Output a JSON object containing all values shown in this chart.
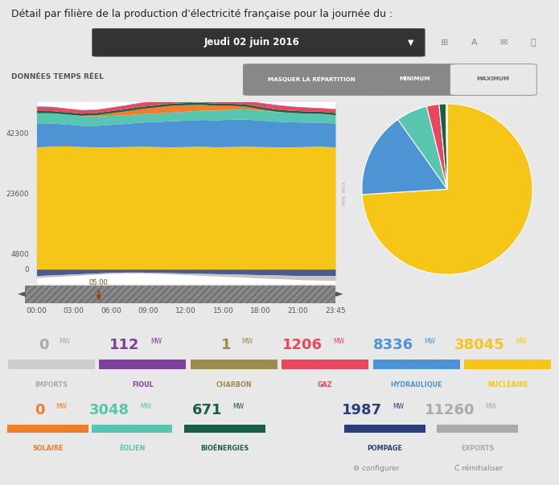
{
  "title": "Détail par filière de la production d'électricité française pour la journée du :",
  "date_label": "Jeudi 02 juin 2016",
  "donnees_label": "DONNÉES TEMPS RÉEL",
  "buttons": [
    "MASQUER LA RÉPARTITION",
    "MINIMUM",
    "MAXIMUM"
  ],
  "bg_color": "#e8e8e8",
  "chart_bg": "#ffffff",
  "yticks": [
    0,
    4800,
    23600,
    42300
  ],
  "xticks": [
    "00:00",
    "03:00",
    "06:00",
    "09:00",
    "12:00",
    "15:00",
    "18:00",
    "21:00",
    "23:45"
  ],
  "time_marker": "05:00",
  "nucleaire_v": [
    38000,
    38200,
    38300,
    38100,
    38000,
    38000,
    38100,
    38200,
    38100,
    38000,
    38100,
    38200,
    38000,
    38100,
    38200,
    38100,
    38000,
    38000,
    38100,
    38200,
    38000
  ],
  "hydraulique_v": [
    7500,
    7200,
    6800,
    6600,
    6700,
    7000,
    7200,
    7500,
    7800,
    8100,
    8200,
    8300,
    8400,
    8500,
    8400,
    8200,
    8000,
    7800,
    7600,
    7500,
    7400
  ],
  "eolien_v": [
    3100,
    3200,
    3100,
    3000,
    2900,
    2800,
    2700,
    2600,
    2600,
    2700,
    2800,
    2900,
    3000,
    3100,
    3200,
    3100,
    3000,
    2900,
    2800,
    2700,
    2600
  ],
  "solaire_v": [
    0,
    0,
    0,
    100,
    400,
    800,
    1200,
    1600,
    1900,
    2100,
    2000,
    1800,
    1500,
    1200,
    800,
    400,
    100,
    0,
    0,
    0,
    0
  ],
  "bioenergies_v": [
    670,
    670,
    670,
    670,
    670,
    670,
    670,
    670,
    670,
    670,
    670,
    670,
    670,
    670,
    670,
    670,
    670,
    670,
    670,
    670,
    670
  ],
  "gaz_v": [
    1300,
    1200,
    1100,
    1000,
    900,
    1000,
    1100,
    1200,
    1300,
    1200,
    1100,
    1000,
    900,
    1000,
    1100,
    1200,
    1300,
    1200,
    1100,
    1000,
    1100
  ],
  "charbon_v": [
    1,
    1,
    1,
    1,
    1,
    1,
    1,
    1,
    1,
    1,
    1,
    1,
    1,
    1,
    1,
    1,
    1,
    1,
    1,
    1,
    1
  ],
  "fioul_v": [
    112,
    112,
    112,
    112,
    112,
    112,
    112,
    112,
    112,
    112,
    112,
    112,
    112,
    112,
    112,
    112,
    112,
    112,
    112,
    112,
    112
  ],
  "pompage_v": [
    -1987,
    -1800,
    -1600,
    -1400,
    -1200,
    -1000,
    -900,
    -900,
    -1000,
    -1100,
    -1200,
    -1300,
    -1400,
    -1500,
    -1600,
    -1700,
    -1800,
    -1900,
    -2000,
    -2000,
    -2000
  ],
  "imports_v": [
    -600,
    -550,
    -500,
    -450,
    -400,
    -350,
    -300,
    -300,
    -350,
    -400,
    -500,
    -600,
    -700,
    -800,
    -900,
    -1000,
    -1100,
    -1200,
    -1300,
    -1400,
    -1500
  ],
  "pie_values": [
    38045,
    8336,
    3048,
    1206,
    671,
    112
  ],
  "pie_colors": [
    "#f5c518",
    "#4d94d5",
    "#57c5b0",
    "#e8475f",
    "#1a5e45",
    "#9b8b4e"
  ],
  "stats_row1": [
    {
      "value": "0",
      "label": "IMPORTS",
      "text_color": "#aaaaaa",
      "bar_color": "#cccccc"
    },
    {
      "value": "112",
      "label": "FIOUL",
      "text_color": "#7e3f9d",
      "bar_color": "#7e3f9d"
    },
    {
      "value": "1",
      "label": "CHARBON",
      "text_color": "#9b8b4e",
      "bar_color": "#9b8b4e"
    },
    {
      "value": "1206",
      "label": "GAZ",
      "text_color": "#e8475f",
      "bar_color": "#e8475f"
    },
    {
      "value": "8336",
      "label": "HYDRAULIQUE",
      "text_color": "#4d94d5",
      "bar_color": "#4d94d5"
    },
    {
      "value": "38045",
      "label": "NUCLÉAIRE",
      "text_color": "#f5c518",
      "bar_color": "#f5c518"
    }
  ],
  "stats_row2": [
    {
      "value": "0",
      "label": "SOLAIRE",
      "text_color": "#f07d2a",
      "bar_color": "#f07d2a"
    },
    {
      "value": "3048",
      "label": "ÉOLIEN",
      "text_color": "#57c5b0",
      "bar_color": "#57c5b0"
    },
    {
      "value": "671",
      "label": "BIOÉNERGIES",
      "text_color": "#1a5e45",
      "bar_color": "#1a5e45"
    },
    {
      "value": "1987",
      "label": "POMPAGE",
      "text_color": "#2c3e7a",
      "bar_color": "#2c3e7a"
    },
    {
      "value": "11260",
      "label": "EXPORTS",
      "text_color": "#aaaaaa",
      "bar_color": "#aaaaaa"
    }
  ]
}
